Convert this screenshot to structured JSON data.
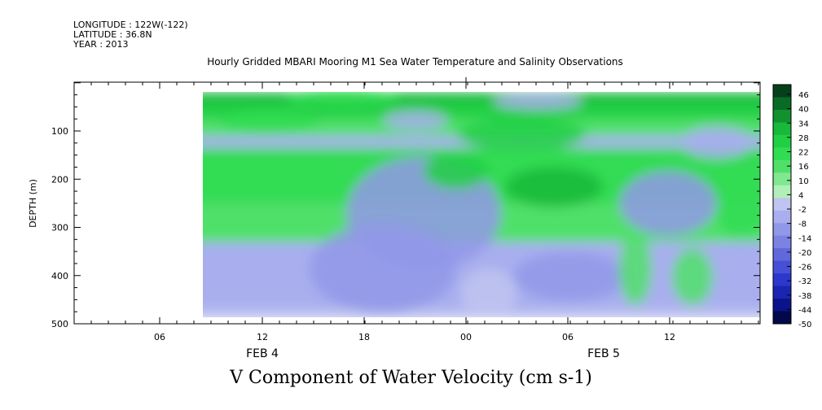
{
  "meta": {
    "longitude": "LONGITUDE : 122W(-122)",
    "latitude": "LATITUDE : 36.8N",
    "year": "YEAR : 2013"
  },
  "title": "Hourly Gridded MBARI Mooring M1 Sea Water Temperature and Salinity Observations",
  "bottom_title": "V Component of Water Velocity (cm s-1)",
  "chart_data": {
    "type": "heatmap",
    "title": "Hourly Gridded MBARI Mooring M1 Sea Water Temperature and Salinity Observations",
    "xlabel": "",
    "ylabel": "DEPTH (m)",
    "variable": "V Component of Water Velocity (cm s-1)",
    "x_tick_labels": [
      "06",
      "12",
      "18",
      "00",
      "06",
      "12"
    ],
    "x_date_labels": [
      "FEB 4",
      "FEB 5"
    ],
    "y_ticks": [
      100,
      200,
      300,
      400,
      500
    ],
    "y_range": [
      500,
      0
    ],
    "y_reversed": true,
    "colorbar": {
      "levels": [
        46,
        40,
        34,
        28,
        22,
        16,
        10,
        4,
        -2,
        -8,
        -14,
        -20,
        -26,
        -32,
        -38,
        -44,
        -50
      ],
      "positive_colors": [
        "#05401a",
        "#0a6b26",
        "#11922f",
        "#18b83a",
        "#20d044",
        "#30dc52",
        "#50e06a",
        "#80e890",
        "#b0f0b8"
      ],
      "negative_colors": [
        "#c0c4f0",
        "#a8aeee",
        "#9298e8",
        "#7c82e2",
        "#6068dc",
        "#4650d6",
        "#2c38cc",
        "#1a26b0",
        "#0b138a",
        "#02084a"
      ]
    },
    "bands": [
      {
        "depth": [
          20,
          40
        ],
        "value": 25
      },
      {
        "depth": [
          40,
          75
        ],
        "value": 22
      },
      {
        "depth": [
          75,
          110
        ],
        "value": 10
      },
      {
        "depth": [
          110,
          135
        ],
        "value": -6
      },
      {
        "depth": [
          135,
          190
        ],
        "value": 12
      },
      {
        "depth": [
          190,
          250
        ],
        "value": 14
      },
      {
        "depth": [
          250,
          330
        ],
        "value": 6
      },
      {
        "depth": [
          330,
          470
        ],
        "value": -7
      },
      {
        "depth": [
          470,
          490
        ],
        "value": 2
      }
    ]
  }
}
